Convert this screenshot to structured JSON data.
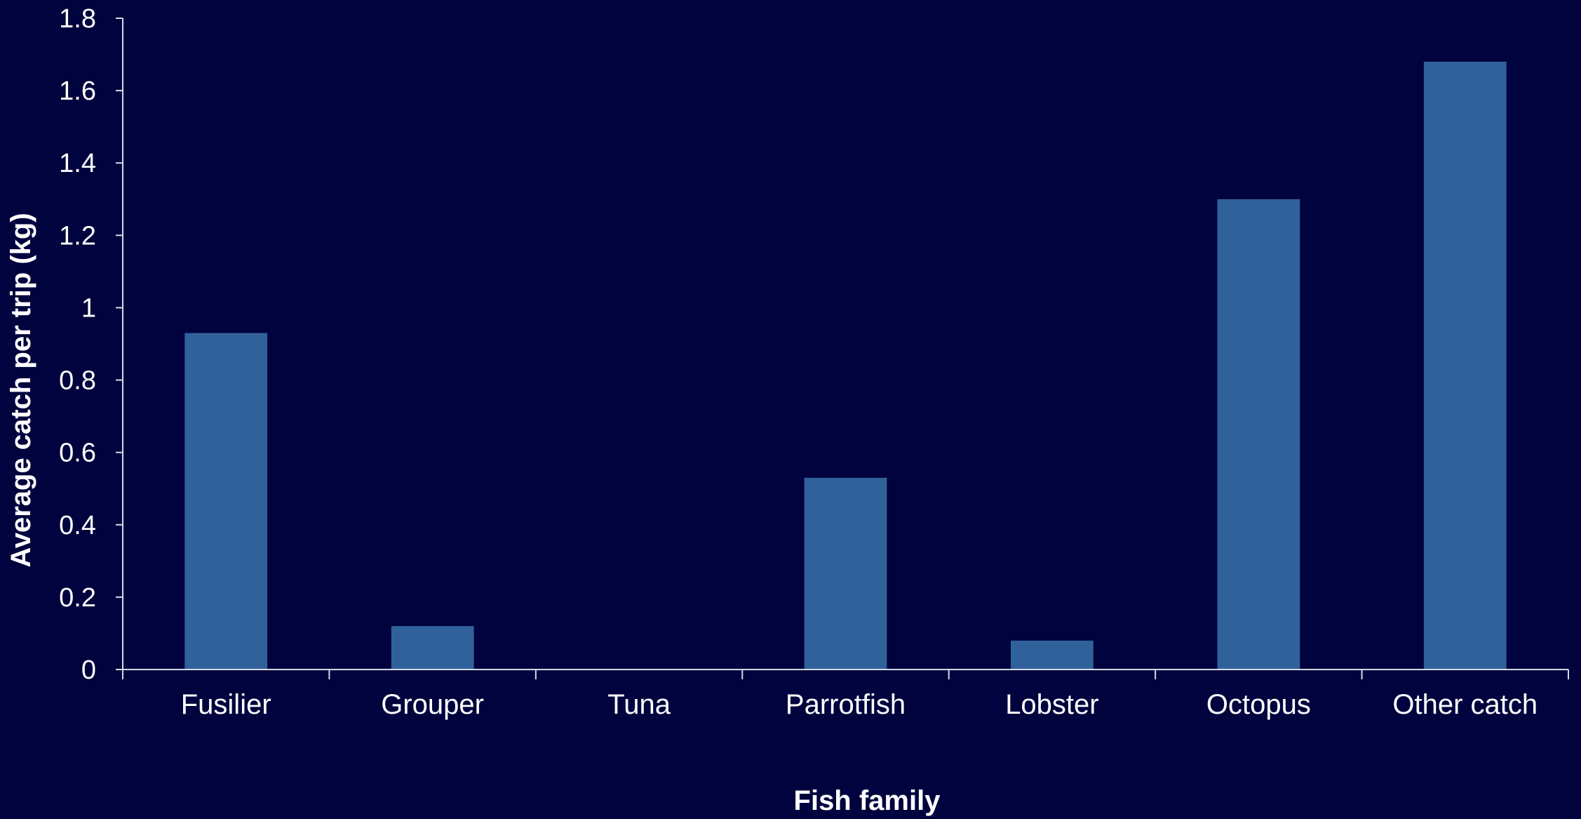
{
  "chart_data": {
    "type": "bar",
    "categories": [
      "Fusilier",
      "Grouper",
      "Tuna",
      "Parrotfish",
      "Lobster",
      "Octopus",
      "Other catch"
    ],
    "values": [
      0.93,
      0.12,
      0,
      0.53,
      0.08,
      1.3,
      1.68
    ],
    "xlabel": "Fish family",
    "ylabel": "Average catch per trip (kg)",
    "ylim": [
      0,
      1.8
    ],
    "yticks": [
      "0",
      "0.2",
      "0.4",
      "0.6",
      "0.8",
      "1",
      "1.2",
      "1.4",
      "1.6",
      "1.8"
    ],
    "grid": false,
    "legend": "none"
  },
  "colors": {
    "background": "#00033d",
    "bar": "#31619b",
    "axis": "#d6d9e8",
    "text": "#ffffff"
  }
}
